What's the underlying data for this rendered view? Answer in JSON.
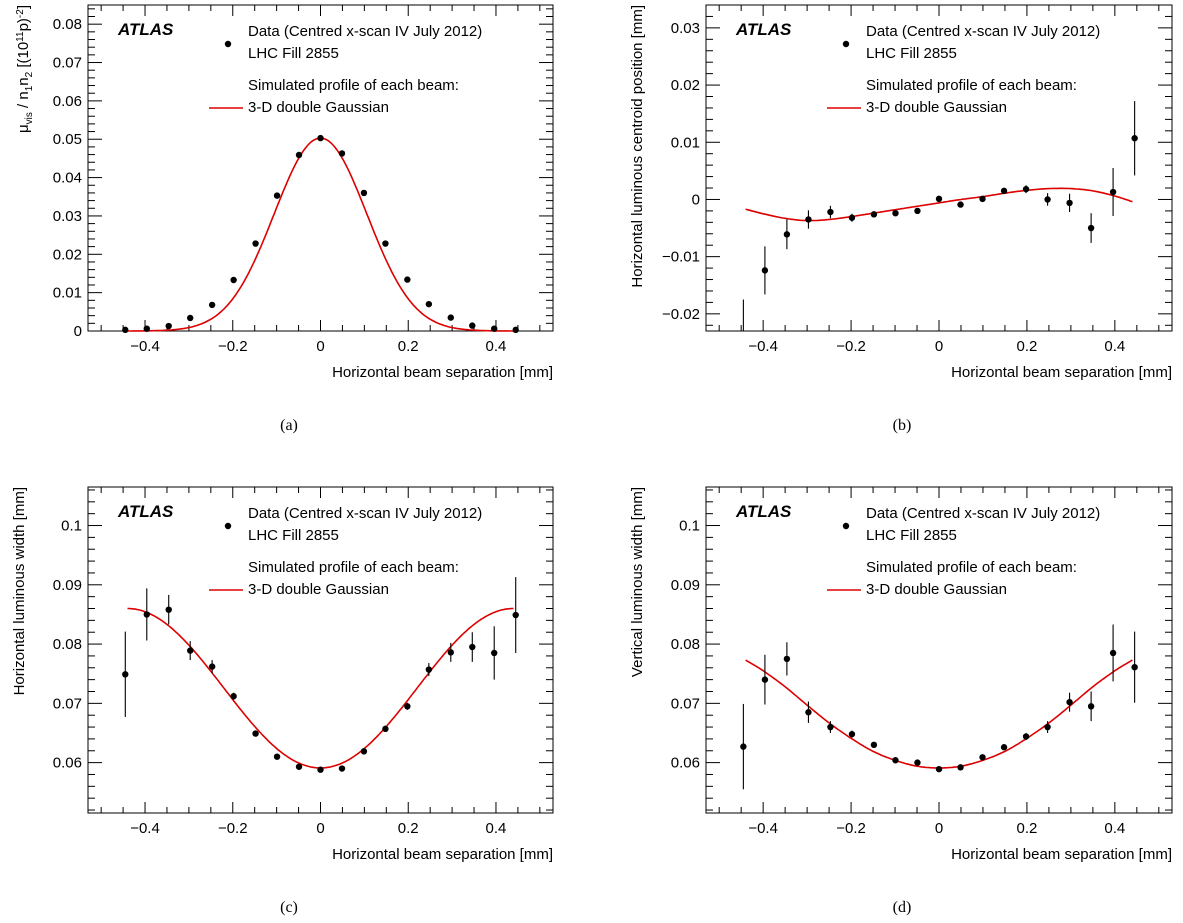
{
  "figure": {
    "atlas_label": "ATLAS",
    "legend": {
      "data_line1": "Data (Centred x-scan IV July 2012)",
      "data_line2": "LHC Fill 2855",
      "sim_line1": "Simulated profile of each beam:",
      "sim_line2": "3-D double Gaussian"
    },
    "colors": {
      "model": "#dd0000",
      "data": "#000000"
    }
  },
  "chart_data": [
    {
      "id": "a",
      "caption": "(a)",
      "type": "scatter",
      "xlabel": "Horizontal beam separation [mm]",
      "ylabel": "μvis / n1n2 [(10¹¹p)⁻²]",
      "ylabel_parts": {
        "mu": "μ",
        "mu_sub": "vis",
        "mid": " / n",
        "n1_sub": "1",
        "n": "n",
        "n2_sub": "2",
        "unit_open": " [(10",
        "exp1": "11",
        "unit_mid": "p)",
        "exp2": "-2",
        "unit_close": "]"
      },
      "xlim": [
        -0.53,
        0.53
      ],
      "ylim": [
        0,
        0.085
      ],
      "xticks": [
        -0.4,
        -0.2,
        0,
        0.2,
        0.4
      ],
      "xtick_labels": [
        "−0.4",
        "−0.2",
        "0",
        "0.2",
        "0.4"
      ],
      "yticks": [
        0,
        0.01,
        0.02,
        0.03,
        0.04,
        0.05,
        0.06,
        0.07,
        0.08
      ],
      "ytick_labels": [
        "0",
        "0.01",
        "0.02",
        "0.03",
        "0.04",
        "0.05",
        "0.06",
        "0.07",
        "0.08"
      ],
      "series": [
        {
          "name": "Data (Centred x-scan IV July 2012)",
          "x": [
            -0.445,
            -0.396,
            -0.346,
            -0.297,
            -0.247,
            -0.198,
            -0.148,
            -0.099,
            -0.049,
            0.0,
            0.049,
            0.099,
            0.148,
            0.198,
            0.247,
            0.297,
            0.346,
            0.396,
            0.445
          ],
          "y": [
            0.0003,
            0.0006,
            0.0013,
            0.0034,
            0.0068,
            0.0133,
            0.0228,
            0.0353,
            0.0459,
            0.0503,
            0.0463,
            0.036,
            0.0228,
            0.0134,
            0.007,
            0.0035,
            0.0014,
            0.0006,
            0.0003
          ],
          "yerr": [
            0,
            0,
            0,
            0,
            0,
            0,
            0,
            0,
            0,
            0,
            0,
            0,
            0,
            0,
            0,
            0,
            0,
            0,
            0
          ]
        },
        {
          "name": "3-D double Gaussian",
          "model": "gauss",
          "amp": 0.0503,
          "sigma": 0.1057
        }
      ]
    },
    {
      "id": "b",
      "caption": "(b)",
      "type": "scatter",
      "xlabel": "Horizontal beam separation [mm]",
      "ylabel": "Horizontal luminous centroid position [mm]",
      "xlim": [
        -0.53,
        0.53
      ],
      "ylim": [
        -0.023,
        0.034
      ],
      "xticks": [
        -0.4,
        -0.2,
        0,
        0.2,
        0.4
      ],
      "xtick_labels": [
        "−0.4",
        "−0.2",
        "0",
        "0.2",
        "0.4"
      ],
      "yticks": [
        -0.02,
        -0.01,
        0,
        0.01,
        0.02,
        0.03
      ],
      "ytick_labels": [
        "−0.02",
        "−0.01",
        "0",
        "0.01",
        "0.02",
        "0.03"
      ],
      "series": [
        {
          "name": "Data (Centred x-scan IV July 2012)",
          "x": [
            -0.445,
            -0.396,
            -0.346,
            -0.297,
            -0.247,
            -0.198,
            -0.148,
            -0.099,
            -0.049,
            0.0,
            0.049,
            0.099,
            0.148,
            0.198,
            0.247,
            0.297,
            0.346,
            0.396,
            0.445
          ],
          "y": [
            -0.0245,
            -0.0124,
            -0.0061,
            -0.0035,
            -0.0022,
            -0.0032,
            -0.0026,
            -0.0024,
            -0.002,
            0.0001,
            -0.0009,
            0.0001,
            0.0015,
            0.0018,
            0.0,
            -0.0006,
            -0.005,
            0.0013,
            0.0107
          ],
          "yerr": [
            0.007,
            0.0042,
            0.0026,
            0.0016,
            0.0011,
            0.0007,
            0.0005,
            0.0004,
            0.0004,
            0.0004,
            0.0004,
            0.0004,
            0.0005,
            0.0007,
            0.0011,
            0.0016,
            0.0026,
            0.0042,
            0.0065
          ]
        },
        {
          "name": "3-D double Gaussian",
          "model": "points",
          "x": [
            -0.44,
            -0.4,
            -0.35,
            -0.3,
            -0.25,
            -0.2,
            -0.15,
            -0.1,
            -0.05,
            0.0,
            0.05,
            0.1,
            0.15,
            0.2,
            0.25,
            0.3,
            0.35,
            0.4,
            0.44
          ],
          "y": [
            -0.0017,
            -0.0025,
            -0.0033,
            -0.0037,
            -0.0035,
            -0.003,
            -0.0024,
            -0.0018,
            -0.0012,
            -0.0006,
            0.0,
            0.0005,
            0.0011,
            0.0016,
            0.0019,
            0.0019,
            0.0015,
            0.0006,
            -0.0004
          ]
        }
      ]
    },
    {
      "id": "c",
      "caption": "(c)",
      "type": "scatter",
      "xlabel": "Horizontal beam separation [mm]",
      "ylabel": "Horizontal luminous width [mm]",
      "xlim": [
        -0.53,
        0.53
      ],
      "ylim": [
        0.0515,
        0.1065
      ],
      "xticks": [
        -0.4,
        -0.2,
        0,
        0.2,
        0.4
      ],
      "xtick_labels": [
        "−0.4",
        "−0.2",
        "0",
        "0.2",
        "0.4"
      ],
      "yticks": [
        0.06,
        0.07,
        0.08,
        0.09,
        0.1
      ],
      "ytick_labels": [
        "0.06",
        "0.07",
        "0.08",
        "0.09",
        "0.1"
      ],
      "series": [
        {
          "name": "Data (Centred x-scan IV July 2012)",
          "x": [
            -0.445,
            -0.396,
            -0.346,
            -0.297,
            -0.247,
            -0.198,
            -0.148,
            -0.099,
            -0.049,
            0.0,
            0.049,
            0.099,
            0.148,
            0.198,
            0.247,
            0.297,
            0.346,
            0.396,
            0.445
          ],
          "y": [
            0.0749,
            0.085,
            0.0858,
            0.0789,
            0.0762,
            0.0712,
            0.0649,
            0.061,
            0.0593,
            0.0588,
            0.059,
            0.0619,
            0.0657,
            0.0695,
            0.0757,
            0.0786,
            0.0795,
            0.0785,
            0.0849
          ],
          "yerr": [
            0.0072,
            0.0044,
            0.0025,
            0.0016,
            0.0011,
            0.0006,
            0.0004,
            0.0003,
            0.0002,
            0.0002,
            0.0002,
            0.0003,
            0.0004,
            0.0006,
            0.0011,
            0.0016,
            0.0025,
            0.0045,
            0.0064
          ]
        },
        {
          "name": "3-D double Gaussian",
          "model": "cos",
          "center_value": 0.0591,
          "edge_value": 0.086,
          "half_range": 0.44
        }
      ]
    },
    {
      "id": "d",
      "caption": "(d)",
      "type": "scatter",
      "xlabel": "Horizontal beam separation [mm]",
      "ylabel": "Vertical luminous width [mm]",
      "xlim": [
        -0.53,
        0.53
      ],
      "ylim": [
        0.0515,
        0.1065
      ],
      "xticks": [
        -0.4,
        -0.2,
        0,
        0.2,
        0.4
      ],
      "xtick_labels": [
        "−0.4",
        "−0.2",
        "0",
        "0.2",
        "0.4"
      ],
      "yticks": [
        0.06,
        0.07,
        0.08,
        0.09,
        0.1
      ],
      "ytick_labels": [
        "0.06",
        "0.07",
        "0.08",
        "0.09",
        "0.1"
      ],
      "series": [
        {
          "name": "Data (Centred x-scan IV July 2012)",
          "x": [
            -0.445,
            -0.396,
            -0.346,
            -0.297,
            -0.247,
            -0.198,
            -0.148,
            -0.099,
            -0.049,
            0.0,
            0.049,
            0.099,
            0.148,
            0.198,
            0.247,
            0.297,
            0.346,
            0.396,
            0.445
          ],
          "y": [
            0.0627,
            0.074,
            0.0775,
            0.0685,
            0.066,
            0.0648,
            0.063,
            0.0604,
            0.06,
            0.0589,
            0.0592,
            0.0609,
            0.0626,
            0.0644,
            0.066,
            0.0702,
            0.0695,
            0.0785,
            0.0761
          ],
          "yerr": [
            0.0072,
            0.0042,
            0.0028,
            0.0018,
            0.001,
            0.0006,
            0.0004,
            0.0003,
            0.0002,
            0.0002,
            0.0002,
            0.0003,
            0.0004,
            0.0006,
            0.001,
            0.0016,
            0.0025,
            0.0048,
            0.006
          ]
        },
        {
          "name": "3-D double Gaussian",
          "model": "points",
          "x": [
            -0.44,
            -0.4,
            -0.35,
            -0.3,
            -0.25,
            -0.2,
            -0.15,
            -0.1,
            -0.05,
            0.0,
            0.05,
            0.1,
            0.15,
            0.2,
            0.25,
            0.3,
            0.35,
            0.4,
            0.44
          ],
          "y": [
            0.0773,
            0.0755,
            0.0728,
            0.0697,
            0.0667,
            0.0641,
            0.0619,
            0.0604,
            0.0594,
            0.0591,
            0.0594,
            0.0604,
            0.0619,
            0.0641,
            0.0667,
            0.0697,
            0.0728,
            0.0755,
            0.0773
          ]
        }
      ]
    }
  ]
}
